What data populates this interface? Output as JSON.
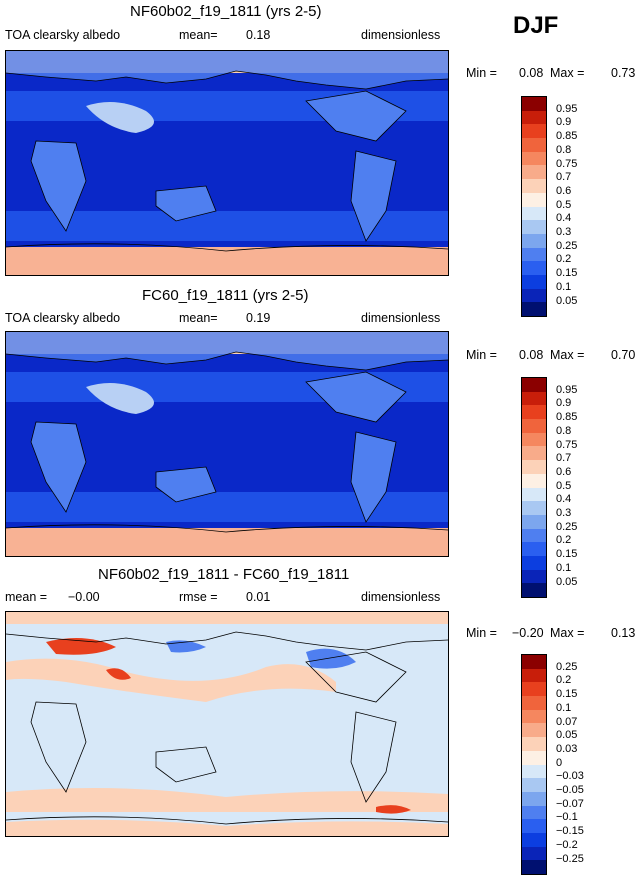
{
  "season": "DJF",
  "panels": [
    {
      "title": "NF60b02_f19_1811 (yrs 2-5)",
      "variable": "TOA clearsky albedo",
      "mean_label": "mean=",
      "mean_value": "0.18",
      "units": "dimensionless",
      "min_label": "Min =",
      "min_value": "0.08",
      "max_label": "Max =",
      "max_value": "0.73"
    },
    {
      "title": "FC60_f19_1811 (yrs 2-5)",
      "variable": "TOA clearsky albedo",
      "mean_label": "mean=",
      "mean_value": "0.19",
      "units": "dimensionless",
      "min_label": "Min =",
      "min_value": "0.08",
      "max_label": "Max =",
      "max_value": "0.70"
    },
    {
      "title": "NF60b02_f19_1811 - FC60_f19_1811",
      "mean_label": "mean =",
      "mean_value": "−0.00",
      "rmse_label": "rmse =",
      "rmse_value": "0.01",
      "units": "dimensionless",
      "min_label": "Min =",
      "min_value": "−0.20",
      "max_label": "Max =",
      "max_value": "0.13"
    }
  ],
  "colorbar_abs": {
    "labels": [
      "0.95",
      "0.9",
      "0.85",
      "0.8",
      "0.75",
      "0.7",
      "0.6",
      "0.5",
      "0.4",
      "0.3",
      "0.25",
      "0.2",
      "0.15",
      "0.1",
      "0.05"
    ],
    "colors": [
      "#8b0000",
      "#c81e0a",
      "#e8401e",
      "#f0643c",
      "#f5875f",
      "#f8ab8a",
      "#fcd2b8",
      "#fdf0e4",
      "#d7e8f8",
      "#a9c8f2",
      "#7ca6ee",
      "#4f7ff0",
      "#2a5ff0",
      "#0c3ee0",
      "#0a24b8",
      "#001070"
    ]
  },
  "colorbar_diff": {
    "labels": [
      "0.25",
      "0.2",
      "0.15",
      "0.1",
      "0.07",
      "0.05",
      "0.03",
      "0",
      "−0.03",
      "−0.05",
      "−0.07",
      "−0.1",
      "−0.15",
      "−0.2",
      "−0.25"
    ],
    "colors": [
      "#8b0000",
      "#c81e0a",
      "#e8401e",
      "#f0643c",
      "#f5875f",
      "#f8ab8a",
      "#fcd2b8",
      "#fdf0e4",
      "#d7e8f8",
      "#a9c8f2",
      "#7ca6ee",
      "#4f7ff0",
      "#2a5ff0",
      "#0c3ee0",
      "#0a24b8",
      "#001070"
    ]
  },
  "colors": {
    "polar_south": "#f8b294",
    "polar_north": "#fcd2b8",
    "ocean_deep": "#0a28c8",
    "ocean_mid": "#1e50e6",
    "land_blue": "#4f7ff0",
    "desert": "#b8d0f4",
    "diff_background": "#d7e8f8",
    "diff_pos": "#fcd2b8",
    "diff_strong": "#e8401e",
    "diff_neg": "#4f7ff0"
  }
}
